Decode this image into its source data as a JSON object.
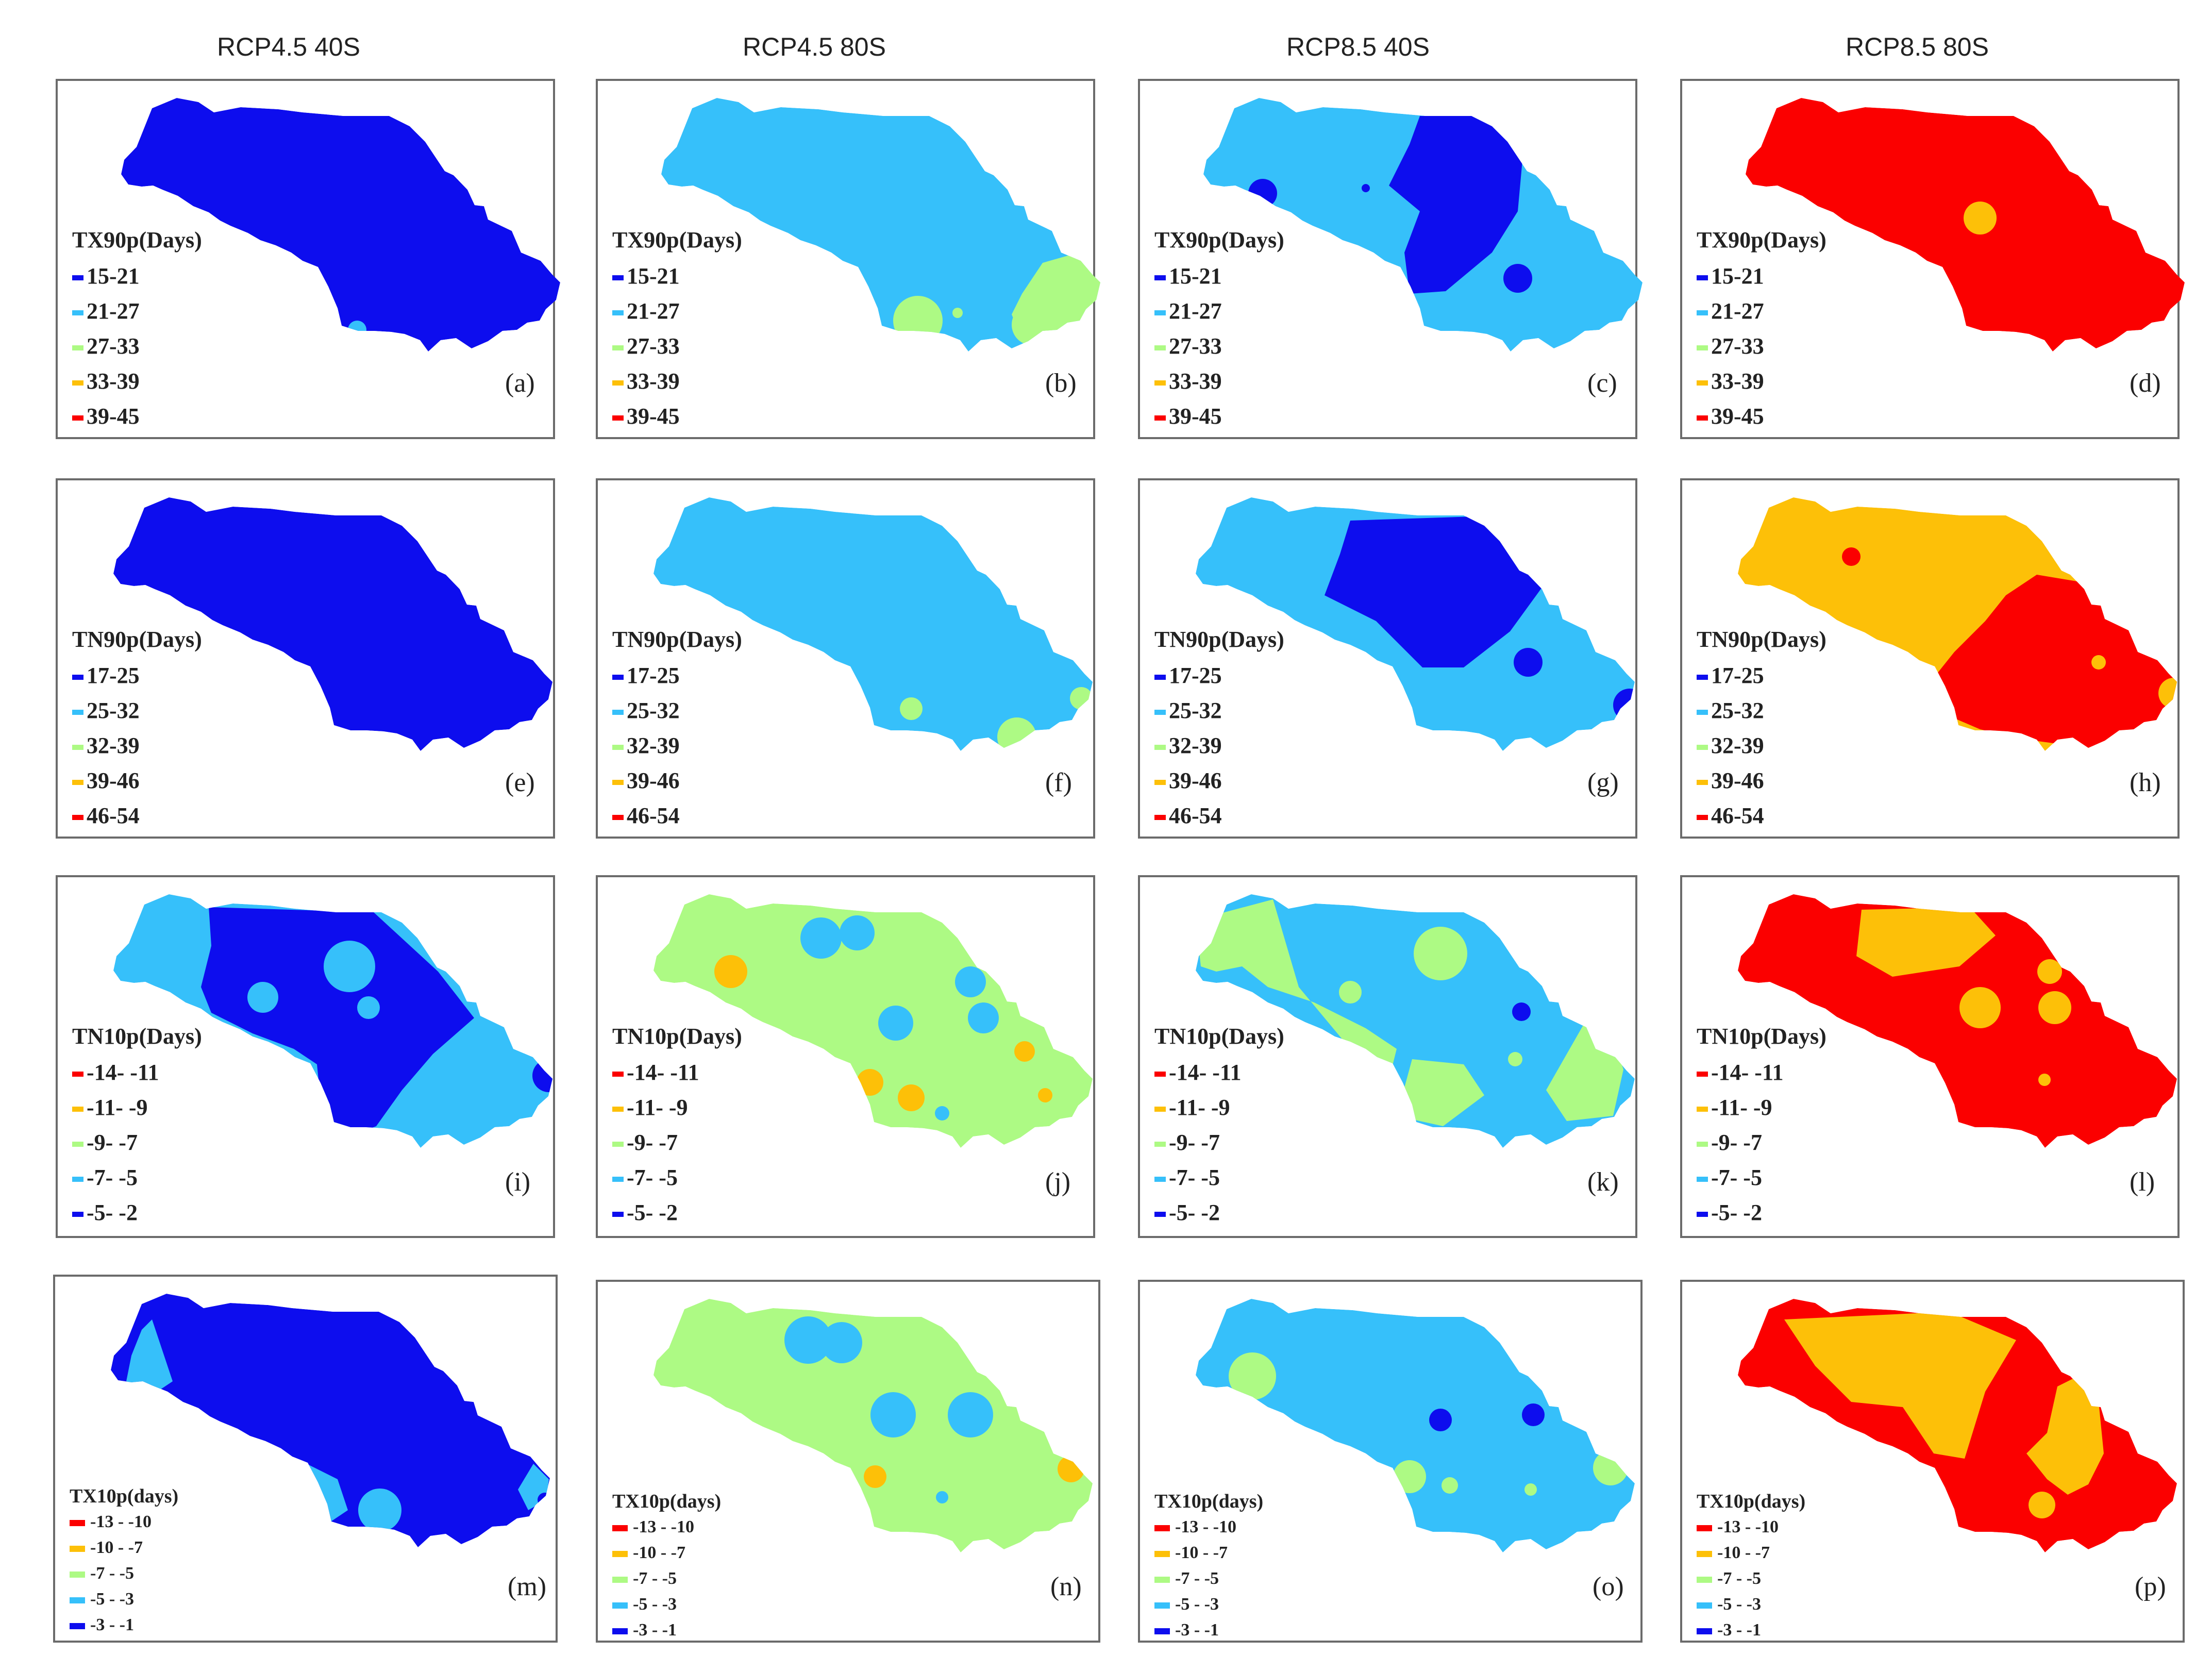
{
  "column_headers": [
    "RCP4.5 40S",
    "RCP4.5 80S",
    "RCP8.5 40S",
    "RCP8.5 80S"
  ],
  "palette": {
    "dark_blue": "#0d0dee",
    "light_blue": "#36c0fa",
    "light_green": "#adfa84",
    "orange": "#fdc008",
    "red": "#fb0000"
  },
  "rows": [
    {
      "index": "TX90p(Days)",
      "legend": [
        "15-21",
        "21-27",
        "27-33",
        "33-39",
        "39-45"
      ],
      "legend_colors": [
        "dark_blue",
        "light_blue",
        "light_green",
        "orange",
        "red"
      ],
      "panels": [
        {
          "letter": "(a)",
          "dominant_class": "15-21"
        },
        {
          "letter": "(b)",
          "dominant_class": "21-27"
        },
        {
          "letter": "(c)",
          "dominant_class": "21-27"
        },
        {
          "letter": "(d)",
          "dominant_class": "39-45"
        }
      ]
    },
    {
      "index": "TN90p(Days)",
      "legend": [
        "17-25",
        "25-32",
        "32-39",
        "39-46",
        "46-54"
      ],
      "legend_colors": [
        "dark_blue",
        "light_blue",
        "light_green",
        "orange",
        "red"
      ],
      "panels": [
        {
          "letter": "(e)",
          "dominant_class": "17-25"
        },
        {
          "letter": "(f)",
          "dominant_class": "25-32"
        },
        {
          "letter": "(g)",
          "dominant_class": "25-32"
        },
        {
          "letter": "(h)",
          "dominant_class": "46-54"
        }
      ]
    },
    {
      "index": "TN10p(Days)",
      "legend": [
        "-14- -11",
        "-11- -9",
        "-9- -7",
        "-7- -5",
        "-5- -2"
      ],
      "legend_colors": [
        "red",
        "orange",
        "light_green",
        "light_blue",
        "dark_blue"
      ],
      "panels": [
        {
          "letter": "(i)",
          "dominant_class": "-5- -2"
        },
        {
          "letter": "(j)",
          "dominant_class": "-9- -7"
        },
        {
          "letter": "(k)",
          "dominant_class": "-7- -5"
        },
        {
          "letter": "(l)",
          "dominant_class": "-14- -11"
        }
      ]
    },
    {
      "index": "TX10p(days)",
      "legend": [
        "-13 - -10",
        "-10 - -7",
        "-7 - -5",
        "-5 - -3",
        "-3 - -1"
      ],
      "legend_colors": [
        "red",
        "orange",
        "light_green",
        "light_blue",
        "dark_blue"
      ],
      "panels": [
        {
          "letter": "(m)",
          "dominant_class": "-3 - -1"
        },
        {
          "letter": "(n)",
          "dominant_class": "-7 - -5"
        },
        {
          "letter": "(o)",
          "dominant_class": "-5 - -3"
        },
        {
          "letter": "(p)",
          "dominant_class": "-13 - -10"
        }
      ]
    }
  ]
}
